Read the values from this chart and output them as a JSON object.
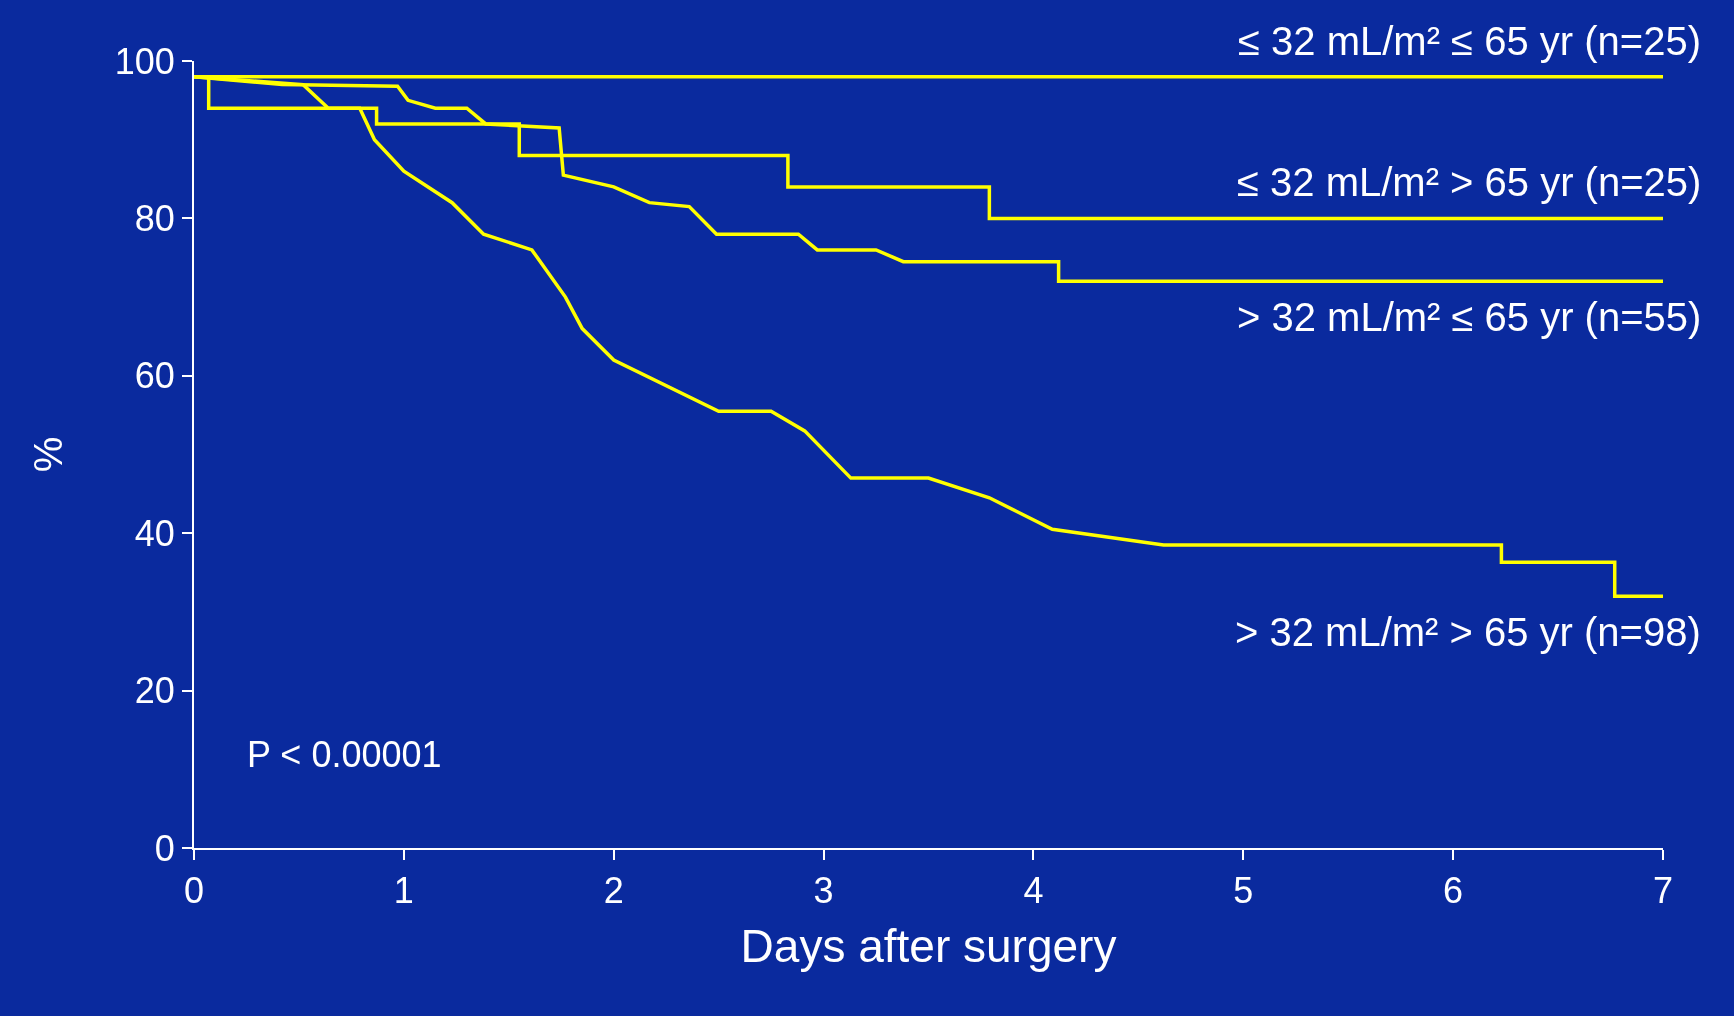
{
  "chart_data": {
    "type": "line",
    "xlabel": "Days after surgery",
    "ylabel": "%",
    "xlim": [
      0,
      7
    ],
    "ylim": [
      0,
      100
    ],
    "xticks": [
      0,
      1,
      2,
      3,
      4,
      5,
      6,
      7
    ],
    "yticks": [
      0,
      20,
      40,
      60,
      80,
      100
    ],
    "grid": false,
    "legend": false,
    "marker": "none",
    "line_style": "solid",
    "annotations": [
      "P < 0.00001"
    ],
    "series": [
      {
        "name": "≤ 32 mL/m² ≤ 65 yr (n=25)",
        "color": "#ffff00",
        "x": [
          0,
          7
        ],
        "values": [
          98,
          98
        ]
      },
      {
        "name": "≤ 32 mL/m² > 65 yr (n=25)",
        "color": "#ffff00",
        "x": [
          0,
          0.07,
          0.07,
          0.87,
          0.87,
          1.55,
          1.55,
          2.83,
          2.83,
          3.79,
          3.79,
          7
        ],
        "values": [
          98,
          98,
          94,
          94,
          92,
          92,
          88,
          88,
          84,
          84,
          80,
          80
        ]
      },
      {
        "name": "> 32 mL/m² ≤ 65 yr (n=55)",
        "color": "#ffff00",
        "x": [
          0,
          0.42,
          0.97,
          1.02,
          1.15,
          1.3,
          1.39,
          1.74,
          1.76,
          2,
          2.17,
          2.36,
          2.49,
          2.88,
          2.97,
          3.25,
          3.38,
          4.12,
          4.12,
          7
        ],
        "values": [
          98,
          97,
          96.8,
          95,
          94,
          94,
          92,
          91.5,
          85.5,
          84,
          82,
          81.5,
          78,
          78,
          76,
          76,
          74.5,
          74.5,
          72,
          72
        ]
      },
      {
        "name": "> 32 mL/m² > 65 yr (n=98)",
        "color": "#ffff00",
        "x": [
          0,
          0.52,
          0.64,
          0.79,
          0.86,
          1.0,
          1.23,
          1.38,
          1.61,
          1.77,
          1.85,
          2,
          2.5,
          2.75,
          2.91,
          3.13,
          3.5,
          3.79,
          4.09,
          4.62,
          6.23,
          6.23,
          6.77,
          6.77,
          7
        ],
        "values": [
          98,
          97,
          94,
          94,
          90,
          86,
          82,
          78,
          76,
          70,
          66,
          62,
          55.5,
          55.5,
          53,
          47,
          47,
          44.5,
          40.5,
          38.5,
          38.5,
          36.3,
          36.3,
          32,
          32
        ]
      }
    ]
  }
}
